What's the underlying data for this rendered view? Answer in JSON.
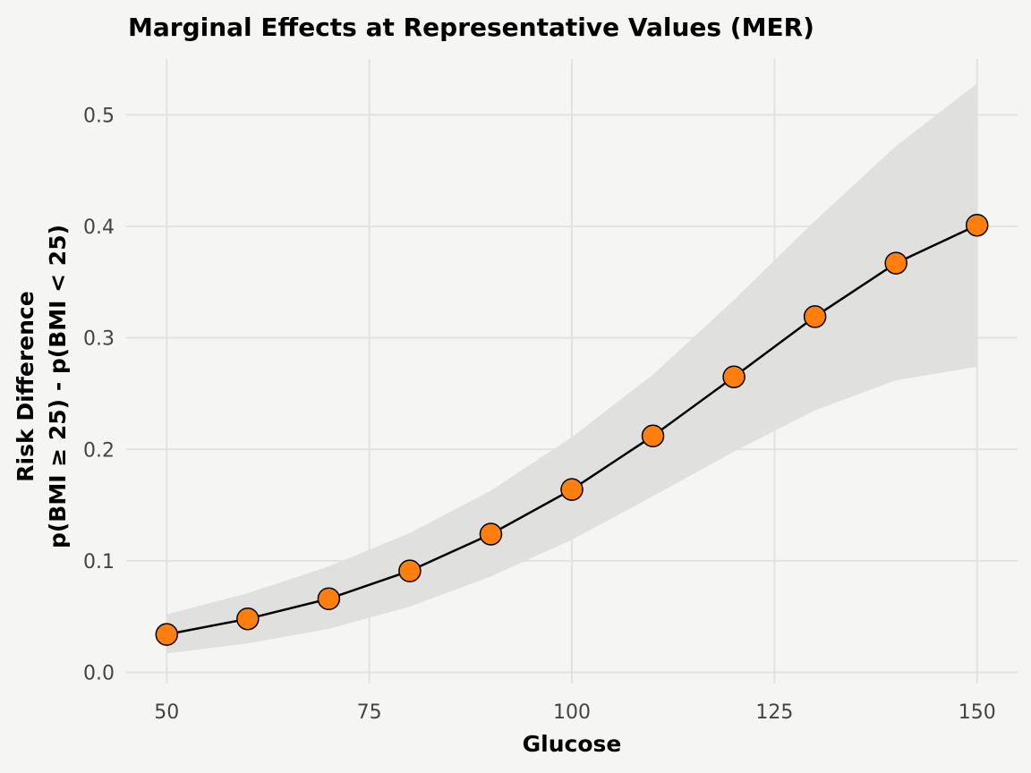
{
  "chart_data": {
    "type": "line",
    "title": "Marginal Effects at Representative Values (MER)",
    "xlabel": "Glucose",
    "ylabel_lines": [
      "Risk Difference",
      "p(BMI ≥ 25) - p(BMI < 25)"
    ],
    "xlim": [
      45,
      155
    ],
    "ylim": [
      -0.01,
      0.55
    ],
    "x_ticks": [
      50,
      75,
      100,
      125,
      150
    ],
    "y_ticks": [
      0.0,
      0.1,
      0.2,
      0.3,
      0.4,
      0.5
    ],
    "x_tick_labels": [
      "50",
      "75",
      "100",
      "125",
      "150"
    ],
    "y_tick_labels": [
      "0.0",
      "0.1",
      "0.2",
      "0.3",
      "0.4",
      "0.5"
    ],
    "grid": true,
    "legend": "none",
    "series": [
      {
        "x": [
          50,
          60,
          70,
          80,
          90,
          100,
          110,
          120,
          130,
          140,
          150
        ],
        "y": [
          0.034,
          0.048,
          0.066,
          0.091,
          0.124,
          0.164,
          0.212,
          0.265,
          0.319,
          0.367,
          0.401
        ],
        "lower": [
          0.017,
          0.026,
          0.039,
          0.059,
          0.086,
          0.119,
          0.158,
          0.198,
          0.235,
          0.262,
          0.274
        ],
        "upper": [
          0.052,
          0.071,
          0.095,
          0.125,
          0.163,
          0.211,
          0.267,
          0.334,
          0.405,
          0.472,
          0.528
        ]
      }
    ],
    "colors": {
      "background": "#f5f5f4",
      "grid": "#e2e2e0",
      "ribbon": "#e0e0df",
      "line": "#000000",
      "point_fill": "#ff7f0e",
      "point_stroke": "#000000",
      "tick_text": "#444444"
    }
  }
}
